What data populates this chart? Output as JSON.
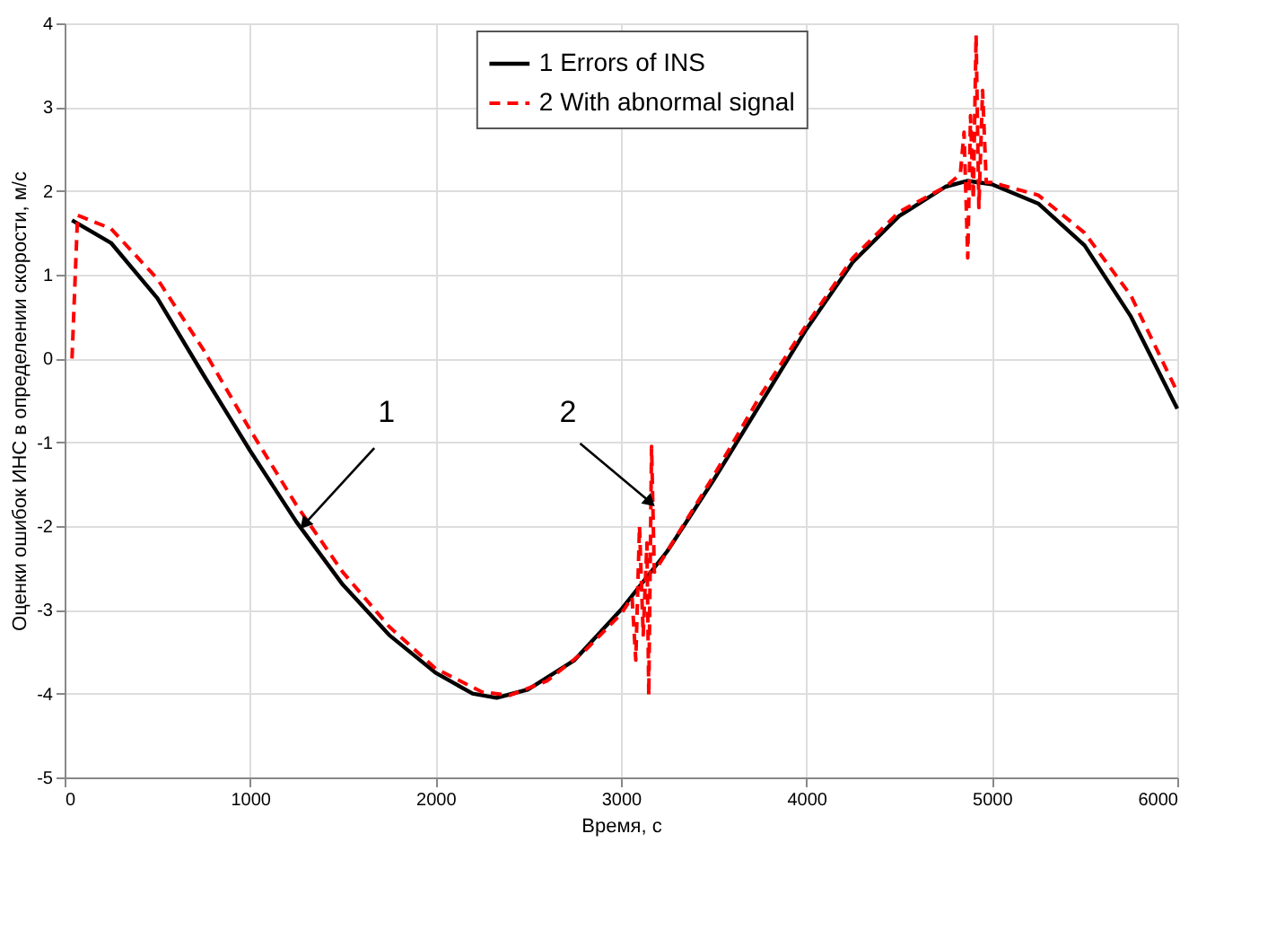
{
  "chart_data": {
    "type": "line",
    "xlabel": "Время, с",
    "ylabel": "Оценки ошибок ИНС в определении скорости, м/с",
    "xlim": [
      0,
      6000
    ],
    "ylim": [
      -5,
      4
    ],
    "xticks": [
      0,
      1000,
      2000,
      3000,
      4000,
      5000,
      6000
    ],
    "yticks": [
      -5,
      -4,
      -3,
      -2,
      -1,
      0,
      1,
      2,
      3,
      4
    ],
    "grid": true,
    "legend": "top",
    "series": [
      {
        "name": "1 Errors of INS",
        "color": "#000000",
        "line_style": "solid",
        "x": [
          40,
          250,
          500,
          750,
          1000,
          1250,
          1500,
          1750,
          2000,
          2200,
          2330,
          2500,
          2750,
          3000,
          3250,
          3500,
          3750,
          4000,
          4250,
          4500,
          4750,
          4870,
          5000,
          5250,
          5500,
          5750,
          6000
        ],
        "values": [
          1.65,
          1.38,
          0.72,
          -0.2,
          -1.1,
          -1.95,
          -2.7,
          -3.3,
          -3.75,
          -4.0,
          -4.05,
          -3.95,
          -3.6,
          -3.0,
          -2.3,
          -1.45,
          -0.55,
          0.35,
          1.15,
          1.7,
          2.05,
          2.12,
          2.08,
          1.85,
          1.35,
          0.5,
          -0.6
        ]
      },
      {
        "name": "2 With abnormal signal",
        "color": "#ff0000",
        "line_style": "dashed",
        "x": [
          40,
          70,
          250,
          500,
          750,
          1000,
          1250,
          1500,
          1750,
          2000,
          2250,
          2400,
          2600,
          2800,
          3000,
          3060,
          3080,
          3100,
          3120,
          3140,
          3150,
          3165,
          3180,
          3250,
          3500,
          3750,
          4000,
          4250,
          4500,
          4750,
          4830,
          4850,
          4870,
          4885,
          4900,
          4915,
          4930,
          4950,
          4970,
          5000,
          5250,
          5500,
          5750,
          6000
        ],
        "values": [
          0,
          1.71,
          1.55,
          0.95,
          0.1,
          -0.85,
          -1.75,
          -2.55,
          -3.2,
          -3.7,
          -3.98,
          -4.02,
          -3.85,
          -3.5,
          -3.05,
          -2.85,
          -3.6,
          -2.0,
          -3.3,
          -2.2,
          -4.02,
          -1.05,
          -2.55,
          -2.3,
          -1.4,
          -0.45,
          0.4,
          1.2,
          1.75,
          2.05,
          2.2,
          2.7,
          1.2,
          2.9,
          1.9,
          3.86,
          1.8,
          3.2,
          2.1,
          2.1,
          1.95,
          1.5,
          0.75,
          -0.4
        ]
      }
    ],
    "annotations": [
      {
        "text": "1",
        "x": 1300,
        "y": -1.96
      },
      {
        "text": "2",
        "x": 3150,
        "y": -1.7
      }
    ]
  }
}
